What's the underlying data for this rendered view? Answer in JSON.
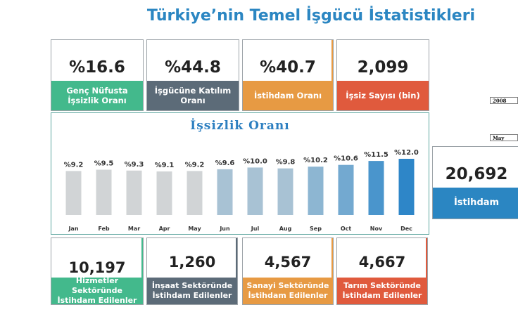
{
  "title": "Türkiye’nin Temel İşgücü İstatistikleri",
  "colors": {
    "green": "#43b98c",
    "slate": "#5c6b78",
    "orange": "#e79a43",
    "red": "#e05a3d",
    "blue": "#2b86c2",
    "title_blue": "#2b86c2"
  },
  "top_cards": [
    {
      "value": "%16.6",
      "label": "Genç Nüfusta İşsizlik Oranı",
      "color": "green"
    },
    {
      "value": "%44.8",
      "label": "İşgücüne Katılım Oranı",
      "color": "slate"
    },
    {
      "value": "%40.7",
      "label": "İstihdam Oranı",
      "color": "orange"
    },
    {
      "value": "2,099",
      "label": "İşsiz Sayısı (bin)",
      "color": "red"
    }
  ],
  "bottom_cards": [
    {
      "value": "10,197",
      "label": "Hizmetler Sektöründe İstihdam Edilenler",
      "color": "green"
    },
    {
      "value": "1,260",
      "label": "İnşaat Sektöründe İstihdam Edilenler",
      "color": "slate"
    },
    {
      "value": "4,567",
      "label": "Sanayi Sektöründe İstihdam Edilenler",
      "color": "orange"
    },
    {
      "value": "4,667",
      "label": "Tarım Sektöründe İstihdam Edilenler",
      "color": "red"
    }
  ],
  "side_card": {
    "value": "20,692",
    "label": "İstihdam",
    "color": "blue"
  },
  "year_selector": {
    "value": "2008"
  },
  "month_selector": {
    "value": "May"
  },
  "chart_data": {
    "type": "bar",
    "title": "İşsizlik Oranı",
    "categories": [
      "Jan",
      "Feb",
      "Mar",
      "Apr",
      "May",
      "Jun",
      "Jul",
      "Aug",
      "Sep",
      "Oct",
      "Nov",
      "Dec"
    ],
    "values": [
      9.2,
      9.5,
      9.3,
      9.1,
      9.2,
      9.6,
      10.0,
      9.8,
      10.2,
      10.6,
      11.5,
      12.0
    ],
    "value_labels": [
      "%9.2",
      "%9.5",
      "%9.3",
      "%9.1",
      "%9.2",
      "%9.6",
      "%10.0",
      "%9.8",
      "%10.2",
      "%10.6",
      "%11.5",
      "%12.0"
    ],
    "xlabel": "",
    "ylabel": "",
    "grid": false,
    "bar_colors": [
      "#d1d4d6",
      "#d1d4d6",
      "#d1d4d6",
      "#d1d4d6",
      "#d1d4d6",
      "#a8c2d4",
      "#a8c2d4",
      "#a8c2d4",
      "#8db6d2",
      "#73a9d0",
      "#4a95cc",
      "#2e86c8"
    ]
  }
}
